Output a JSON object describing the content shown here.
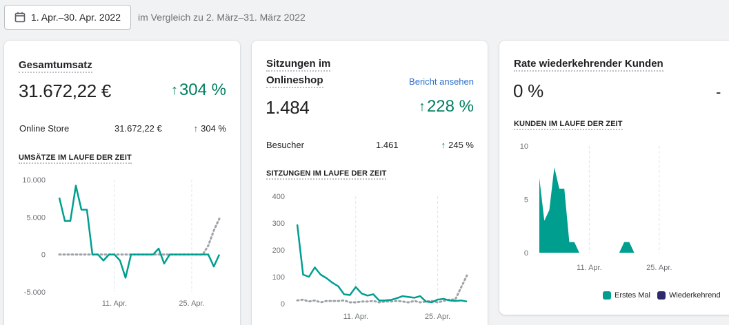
{
  "header": {
    "date_range": "1. Apr.–30. Apr. 2022",
    "comparison": "im Vergleich zu 2. März–31. März 2022"
  },
  "cards": [
    {
      "title": "Gesamtumsatz",
      "value": "31.672,22 €",
      "change": "304 %",
      "rows": [
        {
          "label": "Online Store",
          "value": "31.672,22 €",
          "change": "304 %"
        }
      ],
      "section": "UMSÄTZE IM LAUFE DER ZEIT"
    },
    {
      "title_line1": "Sitzungen im",
      "title_line2": "Onlineshop",
      "link": "Bericht ansehen",
      "value": "1.484",
      "change": "228 %",
      "rows": [
        {
          "label": "Besucher",
          "value": "1.461",
          "change": "245 %"
        }
      ],
      "section": "SITZUNGEN IM LAUFE DER ZEIT"
    },
    {
      "title": "Rate wiederkehrender Kunden",
      "value": "0 %",
      "change": "-",
      "section": "KUNDEN IM LAUFE DER ZEIT",
      "legend": [
        "Erstes Mal",
        "Wiederkehrend"
      ]
    }
  ],
  "colors": {
    "accent": "#009e8f",
    "positive": "#007f5f",
    "comparison": "#9ea3a8",
    "returning": "#2c2a6b",
    "link": "#2c6ecb"
  },
  "chart_data": [
    {
      "type": "line",
      "y_ticks": [
        "10.000",
        "5.000",
        "0",
        "-5.000"
      ],
      "ylim": [
        -5000,
        10000
      ],
      "x_ticks": [
        {
          "day": 11,
          "label": "11. Apr."
        },
        {
          "day": 25,
          "label": "25. Apr."
        }
      ],
      "x_range": [
        1,
        30
      ],
      "series": [
        {
          "values": [
            7600,
            4500,
            4500,
            9200,
            6000,
            6000,
            0,
            0,
            -800,
            0,
            0,
            -800,
            -3100,
            0,
            0,
            0,
            0,
            0,
            800,
            -1200,
            0,
            0,
            0,
            0,
            0,
            0,
            0,
            0,
            -1600,
            0
          ]
        },
        {
          "values": [
            0,
            0,
            0,
            0,
            0,
            0,
            0,
            0,
            0,
            0,
            0,
            0,
            0,
            0,
            0,
            0,
            0,
            0,
            0,
            0,
            0,
            0,
            0,
            0,
            0,
            0,
            0,
            1200,
            3200,
            4800
          ]
        }
      ]
    },
    {
      "type": "line",
      "y_ticks": [
        "400",
        "300",
        "200",
        "100",
        "0"
      ],
      "ylim": [
        0,
        400
      ],
      "x_ticks": [
        {
          "day": 11,
          "label": "11. Apr."
        },
        {
          "day": 25,
          "label": "25. Apr."
        }
      ],
      "x_range": [
        1,
        30
      ],
      "series": [
        {
          "values": [
            295,
            108,
            100,
            135,
            108,
            95,
            78,
            65,
            35,
            32,
            62,
            38,
            30,
            35,
            12,
            12,
            14,
            20,
            28,
            25,
            22,
            28,
            8,
            5,
            15,
            18,
            12,
            10,
            12,
            8
          ]
        },
        {
          "values": [
            12,
            15,
            8,
            12,
            5,
            10,
            10,
            10,
            12,
            5,
            5,
            8,
            8,
            10,
            5,
            8,
            8,
            10,
            8,
            5,
            10,
            5,
            8,
            10,
            5,
            10,
            15,
            15,
            60,
            105
          ]
        }
      ]
    },
    {
      "type": "area",
      "y_ticks": [
        "10",
        "5",
        "0"
      ],
      "ylim": [
        0,
        10
      ],
      "x_ticks": [
        {
          "day": 11,
          "label": "11. Apr."
        },
        {
          "day": 25,
          "label": "25. Apr."
        }
      ],
      "x_range": [
        1,
        30
      ],
      "series": [
        {
          "name": "Erstes Mal",
          "values": [
            7,
            3,
            4,
            8,
            6,
            6,
            1,
            1,
            0,
            0,
            0,
            0,
            0,
            0,
            0,
            0,
            0,
            1,
            1,
            0,
            0,
            0,
            0,
            0,
            0,
            0,
            0,
            0,
            0,
            0
          ]
        },
        {
          "name": "Wiederkehrend",
          "values": [
            0,
            0,
            0,
            0,
            0,
            0,
            0,
            0,
            0,
            0,
            0,
            0,
            0,
            0,
            0,
            0,
            0,
            0,
            0,
            0,
            0,
            0,
            0,
            0,
            0,
            0,
            0,
            0,
            0,
            0
          ]
        }
      ]
    }
  ]
}
